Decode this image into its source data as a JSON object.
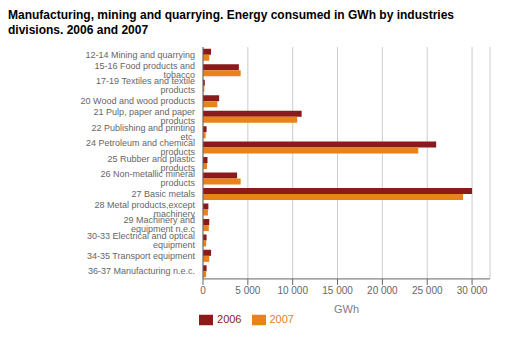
{
  "chart_data": {
    "type": "bar",
    "orientation": "horizontal",
    "title": "Manufacturing, mining and quarrying. Energy consumed in GWh by industries divisions. 2006 and 2007",
    "categories": [
      "12-14  Mining and quarrying",
      "15-16  Food products and tobacco",
      "17-19   Textiles and textile products",
      "    20  Wood and wood products",
      "21  Pulp, paper and paper products",
      "   22  Publishing and printing etc.",
      "24  Petroleum and chemical products",
      "   25  Rubber and plastic products",
      "26  Non-metallic mineral products",
      "   27  Basic metals",
      "28  Metal products,except machinery",
      "  29  Machinery and equipment n.e.c",
      "30-33  Electrical and optical equipment",
      "   34-35  Transport equipment",
      "   36-37  Manufacturing n.e.c."
    ],
    "series": [
      {
        "name": "2006",
        "color": "#8B1A1A",
        "values": [
          900,
          4000,
          200,
          1800,
          11000,
          400,
          26000,
          500,
          3800,
          30000,
          600,
          700,
          400,
          900,
          400
        ]
      },
      {
        "name": "2007",
        "color": "#E8821A",
        "values": [
          700,
          4200,
          150,
          1600,
          10500,
          300,
          24000,
          450,
          4200,
          29000,
          550,
          650,
          350,
          700,
          350
        ]
      }
    ],
    "xlabel": "GWh",
    "xlim": [
      0,
      32000
    ],
    "xticks": [
      0,
      {
        "value": 5000,
        "label": "5 000"
      },
      {
        "value": 10000,
        "label": "10 000"
      },
      {
        "value": 15000,
        "label": "15 000"
      },
      {
        "value": 20000,
        "label": "20 000"
      },
      {
        "value": 25000,
        "label": "25 000"
      },
      {
        "value": 30000,
        "label": "30 000"
      }
    ],
    "grid": true,
    "legend": "bottom"
  }
}
